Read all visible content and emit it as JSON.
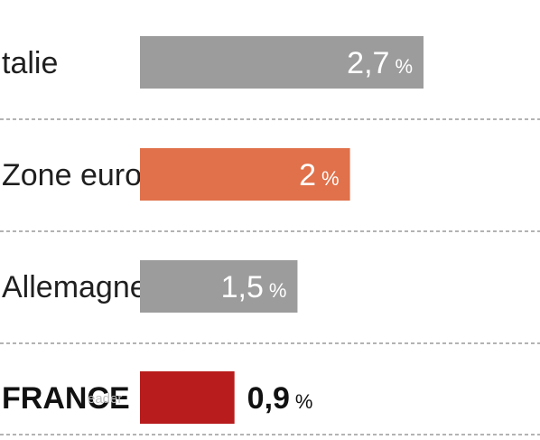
{
  "chart_data": {
    "type": "bar",
    "orientation": "horizontal",
    "categories": [
      "talie",
      "Zone euro",
      "Allemagne",
      "FRANCE"
    ],
    "values": [
      2.7,
      2.0,
      1.5,
      0.9
    ],
    "value_labels": [
      "2,7",
      "2",
      "1,5",
      "0,9"
    ],
    "unit": "%",
    "bar_colors": [
      "#9c9c9c",
      "#e0714a",
      "#9c9c9c",
      "#b81c1c"
    ],
    "highlight_category": "FRANCE",
    "xlim": [
      0,
      2.7
    ],
    "grid": false,
    "separators": "dashed"
  },
  "watermark": "eader"
}
